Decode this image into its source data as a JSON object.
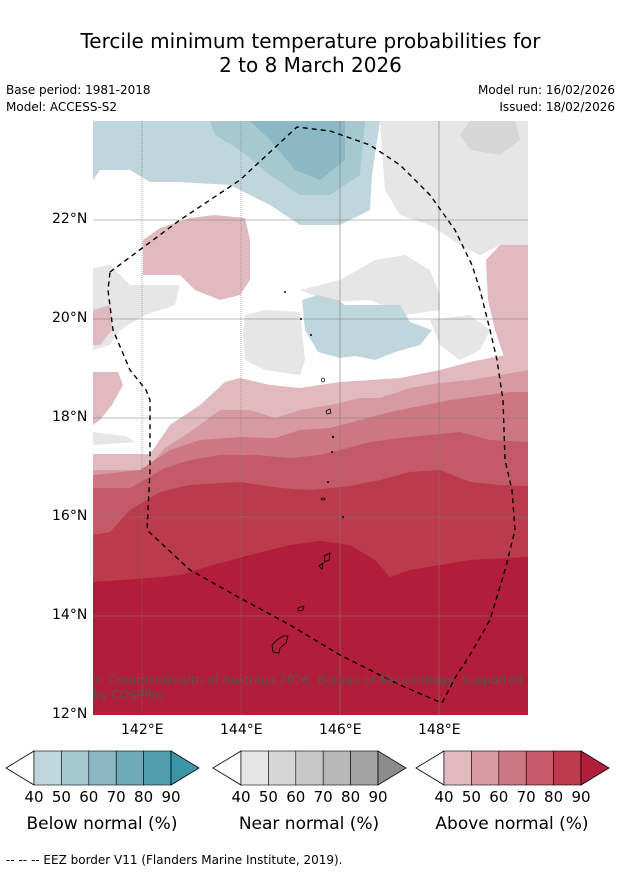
{
  "title_line1": "Tercile minimum temperature probabilities for",
  "title_line2": "2 to 8 March 2026",
  "base_period": "Base period: 1981-2018",
  "model": "Model: ACCESS-S2",
  "model_run": "Model run: 16/02/2026",
  "issued": "Issued: 18/02/2026",
  "lat_labels": [
    "22°N",
    "20°N",
    "18°N",
    "16°N",
    "14°N",
    "12°N"
  ],
  "lon_labels": [
    "142°E",
    "144°E",
    "146°E",
    "148°E"
  ],
  "copyright": "© Commonwealth of Australia 2026, Bureau of Meteorology, supported by COSPPac",
  "legend": {
    "ticks": [
      "40",
      "50",
      "60",
      "70",
      "80",
      "90"
    ],
    "below_label": "Below normal (%)",
    "near_label": "Near normal (%)",
    "above_label": "Above normal (%)",
    "below_colors": [
      "#c0d6dd",
      "#a6c8cf",
      "#8bb8c4",
      "#6dabb8",
      "#4f9fae",
      "#3a95a6"
    ],
    "near_colors": [
      "#e6e6e6",
      "#d6d6d6",
      "#c8c8c8",
      "#b7b7b7",
      "#a3a3a3",
      "#8c8c8c"
    ],
    "above_colors": [
      "#e1bac0",
      "#d89aa2",
      "#cd7783",
      "#c45a67",
      "#bb3a4c",
      "#b21d3a"
    ]
  },
  "footer": "--  --  -- EEZ border V11 (Flanders Marine Institute, 2019)."
}
